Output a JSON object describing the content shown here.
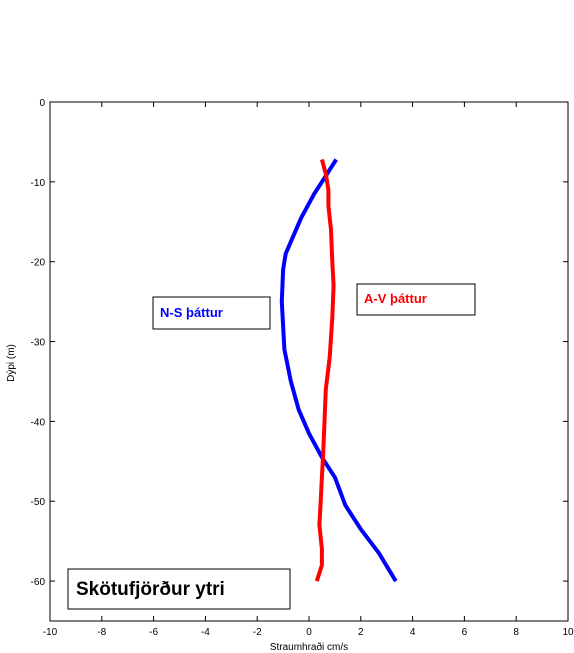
{
  "chart_data": {
    "type": "line",
    "title": "",
    "xlabel": "Straumhraði cm/s",
    "ylabel": "Dýpi (m)",
    "xlim": [
      -10,
      10
    ],
    "ylim": [
      -65,
      0
    ],
    "xticks": [
      -10,
      -8,
      -6,
      -4,
      -2,
      0,
      2,
      4,
      6,
      8,
      10
    ],
    "yticks": [
      0,
      -10,
      -20,
      -30,
      -40,
      -50,
      -60
    ],
    "grid": false,
    "series": [
      {
        "name": "N-S þáttur",
        "color": "#0000ff",
        "points": [
          [
            1.05,
            -7.2
          ],
          [
            0.6,
            -9.5
          ],
          [
            0.2,
            -11.5
          ],
          [
            -0.3,
            -14.5
          ],
          [
            -0.9,
            -19.0
          ],
          [
            -1.0,
            -21.0
          ],
          [
            -1.05,
            -25.0
          ],
          [
            -1.0,
            -28.0
          ],
          [
            -0.95,
            -31.0
          ],
          [
            -0.7,
            -35.0
          ],
          [
            -0.4,
            -38.5
          ],
          [
            0.0,
            -41.5
          ],
          [
            0.5,
            -44.5
          ],
          [
            1.0,
            -47.0
          ],
          [
            1.4,
            -50.5
          ],
          [
            2.0,
            -53.5
          ],
          [
            2.7,
            -56.5
          ],
          [
            3.35,
            -60.0
          ]
        ]
      },
      {
        "name": "A-V þáttur",
        "color": "#ff0000",
        "points": [
          [
            0.5,
            -7.2
          ],
          [
            0.65,
            -9.0
          ],
          [
            0.75,
            -11.0
          ],
          [
            0.75,
            -13.0
          ],
          [
            0.85,
            -16.0
          ],
          [
            0.9,
            -20.0
          ],
          [
            0.95,
            -23.0
          ],
          [
            0.9,
            -27.0
          ],
          [
            0.8,
            -32.0
          ],
          [
            0.65,
            -36.0
          ],
          [
            0.6,
            -40.0
          ],
          [
            0.55,
            -44.0
          ],
          [
            0.5,
            -47.0
          ],
          [
            0.45,
            -50.0
          ],
          [
            0.4,
            -53.0
          ],
          [
            0.5,
            -56.0
          ],
          [
            0.5,
            -58.0
          ],
          [
            0.3,
            -60.0
          ]
        ]
      }
    ],
    "annotations": [
      {
        "text": "N-S þáttur",
        "color": "#0000ff"
      },
      {
        "text": "A-V þáttur",
        "color": "#ff0000"
      },
      {
        "text": "Skötufjörður ytri",
        "color": "#000000"
      }
    ]
  }
}
